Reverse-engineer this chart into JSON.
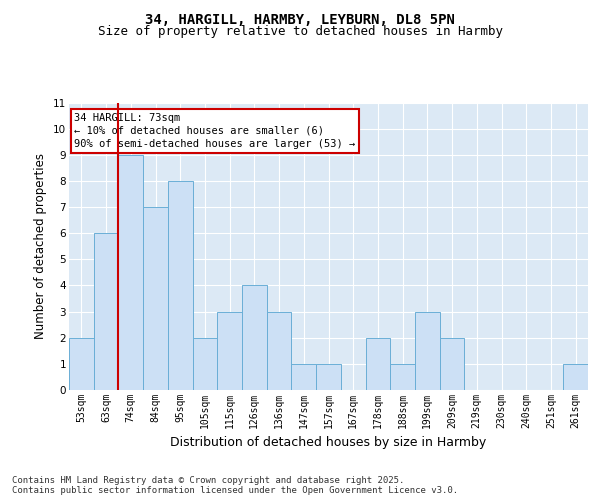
{
  "title_line1": "34, HARGILL, HARMBY, LEYBURN, DL8 5PN",
  "title_line2": "Size of property relative to detached houses in Harmby",
  "xlabel": "Distribution of detached houses by size in Harmby",
  "ylabel": "Number of detached properties",
  "categories": [
    "53sqm",
    "63sqm",
    "74sqm",
    "84sqm",
    "95sqm",
    "105sqm",
    "115sqm",
    "126sqm",
    "136sqm",
    "147sqm",
    "157sqm",
    "167sqm",
    "178sqm",
    "188sqm",
    "199sqm",
    "209sqm",
    "219sqm",
    "230sqm",
    "240sqm",
    "251sqm",
    "261sqm"
  ],
  "values": [
    2,
    6,
    9,
    7,
    8,
    2,
    3,
    4,
    3,
    1,
    1,
    0,
    2,
    1,
    3,
    2,
    0,
    0,
    0,
    0,
    1
  ],
  "bar_color": "#cce0f5",
  "bar_edge_color": "#6aaed6",
  "vline_x_idx": 1.5,
  "vline_color": "#cc0000",
  "annotation_text": "34 HARGILL: 73sqm\n← 10% of detached houses are smaller (6)\n90% of semi-detached houses are larger (53) →",
  "annotation_box_color": "#cc0000",
  "ylim": [
    0,
    11
  ],
  "yticks": [
    0,
    1,
    2,
    3,
    4,
    5,
    6,
    7,
    8,
    9,
    10,
    11
  ],
  "footnote": "Contains HM Land Registry data © Crown copyright and database right 2025.\nContains public sector information licensed under the Open Government Licence v3.0.",
  "bg_color": "#dce9f5",
  "fig_bg_color": "#ffffff",
  "title_fontsize": 10,
  "subtitle_fontsize": 9,
  "axis_label_fontsize": 8.5,
  "tick_fontsize": 7,
  "footnote_fontsize": 6.5,
  "annotation_fontsize": 7.5
}
